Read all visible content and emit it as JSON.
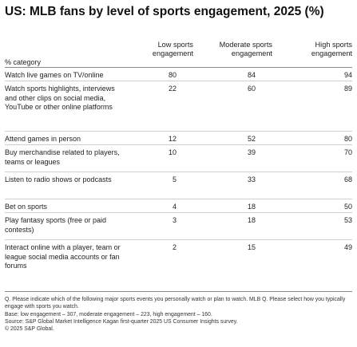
{
  "title": "US: MLB fans by level of sports engagement, 2025 (%)",
  "category_header": "% category",
  "columns": [
    {
      "line1": "Low sports",
      "line2": "engagement"
    },
    {
      "line1": "Moderate sports",
      "line2": "engagement"
    },
    {
      "line1": "High sports",
      "line2": "engagement"
    }
  ],
  "chart_data": {
    "type": "table",
    "title": "US: MLB fans by level of sports engagement, 2025 (%)",
    "columns": [
      "Low sports engagement",
      "Moderate sports engagement",
      "High sports engagement"
    ],
    "rows": [
      {
        "label": "Watch live games on TV/online",
        "values": [
          80,
          84,
          94
        ]
      },
      {
        "label": "Watch sports highlights, interviews and other clips on social media, YouTube or other online platforms",
        "values": [
          22,
          60,
          89
        ]
      },
      {
        "label": "Attend games in person",
        "values": [
          12,
          52,
          80
        ]
      },
      {
        "label": "Buy merchandise related to players, teams or leagues",
        "values": [
          10,
          39,
          70
        ]
      },
      {
        "label": "Listen to radio shows or podcasts",
        "values": [
          5,
          33,
          68
        ]
      },
      {
        "label": "Bet on sports",
        "values": [
          4,
          18,
          50
        ]
      },
      {
        "label": "Play fantasy sports (free or paid contests)",
        "values": [
          3,
          18,
          53
        ]
      },
      {
        "label": "Interact online with a player, team or league social media accounts or fan forums",
        "values": [
          2,
          15,
          49
        ]
      }
    ]
  },
  "footnotes": {
    "q": "Q. Please indicate which of the following major sports events you personally watch or plan to watch. MLB Q. Please select how you typically engage with sports you watch.",
    "base": "Base: low engagement – 307, moderate engagement – 223, high engagement – 160.",
    "source": "Source: S&P Global Market Intelligence Kagan first-quarter 2025 US Consumer Insights survey.",
    "copyright": "© 2025 S&P Global."
  }
}
